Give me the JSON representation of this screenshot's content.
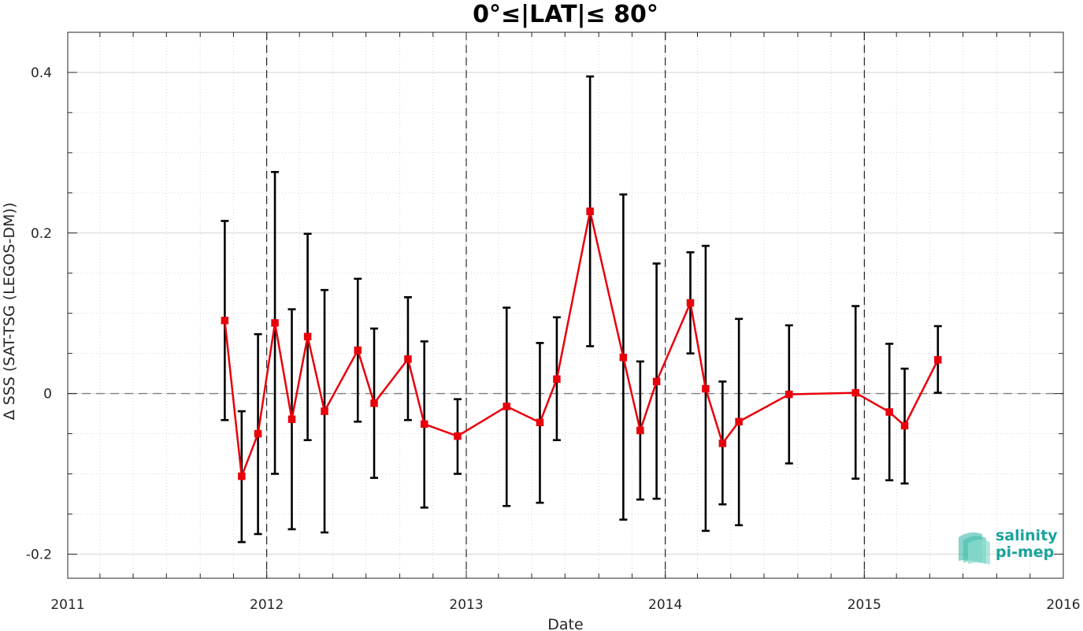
{
  "chart_data": {
    "type": "line",
    "title": "0°≤|LAT|≤ 80°",
    "xlabel": "Date",
    "ylabel": "Δ SSS (SAT-TSG (LEGOS-DM))",
    "xlim": [
      "2011-01-01",
      "2016-01-01"
    ],
    "ylim": [
      -0.23,
      0.45
    ],
    "x_ticks": [
      "2011",
      "2012",
      "2013",
      "2014",
      "2015",
      "2016"
    ],
    "y_ticks": [
      -0.2,
      0,
      0.2,
      0.4
    ],
    "y_tick_labels": [
      "-0.2",
      "0",
      "0.2",
      "0.4"
    ],
    "grid": true,
    "zero_line": 0,
    "year_boundaries": [
      "2012-01-01",
      "2013-01-01",
      "2014-01-01",
      "2015-01-01"
    ],
    "series": [
      {
        "color": "#e8000b",
        "marker": "square",
        "error_bar_color": "#000000",
        "points": [
          {
            "x": "2011-10-16",
            "y": 0.091,
            "ylow": -0.033,
            "yhigh": 0.215
          },
          {
            "x": "2011-11-16",
            "y": -0.103,
            "ylow": -0.185,
            "yhigh": -0.022
          },
          {
            "x": "2011-12-16",
            "y": -0.05,
            "ylow": -0.175,
            "yhigh": 0.074
          },
          {
            "x": "2012-01-16",
            "y": 0.088,
            "ylow": -0.1,
            "yhigh": 0.276
          },
          {
            "x": "2012-02-16",
            "y": -0.032,
            "ylow": -0.169,
            "yhigh": 0.105
          },
          {
            "x": "2012-03-16",
            "y": 0.071,
            "ylow": -0.058,
            "yhigh": 0.199
          },
          {
            "x": "2012-04-16",
            "y": -0.022,
            "ylow": -0.173,
            "yhigh": 0.129
          },
          {
            "x": "2012-06-16",
            "y": 0.054,
            "ylow": -0.035,
            "yhigh": 0.143
          },
          {
            "x": "2012-07-16",
            "y": -0.012,
            "ylow": -0.105,
            "yhigh": 0.081
          },
          {
            "x": "2012-09-16",
            "y": 0.043,
            "ylow": -0.033,
            "yhigh": 0.12
          },
          {
            "x": "2012-10-16",
            "y": -0.038,
            "ylow": -0.142,
            "yhigh": 0.065
          },
          {
            "x": "2012-12-16",
            "y": -0.053,
            "ylow": -0.1,
            "yhigh": -0.007
          },
          {
            "x": "2013-03-16",
            "y": -0.016,
            "ylow": -0.14,
            "yhigh": 0.107
          },
          {
            "x": "2013-05-16",
            "y": -0.036,
            "ylow": -0.136,
            "yhigh": 0.063
          },
          {
            "x": "2013-06-16",
            "y": 0.018,
            "ylow": -0.058,
            "yhigh": 0.095
          },
          {
            "x": "2013-08-16",
            "y": 0.227,
            "ylow": 0.059,
            "yhigh": 0.395
          },
          {
            "x": "2013-10-16",
            "y": 0.045,
            "ylow": -0.157,
            "yhigh": 0.248
          },
          {
            "x": "2013-11-16",
            "y": -0.046,
            "ylow": -0.132,
            "yhigh": 0.04
          },
          {
            "x": "2013-12-16",
            "y": 0.015,
            "ylow": -0.131,
            "yhigh": 0.162
          },
          {
            "x": "2014-02-16",
            "y": 0.113,
            "ylow": 0.05,
            "yhigh": 0.176
          },
          {
            "x": "2014-03-16",
            "y": 0.006,
            "ylow": -0.171,
            "yhigh": 0.184
          },
          {
            "x": "2014-04-16",
            "y": -0.062,
            "ylow": -0.138,
            "yhigh": 0.015
          },
          {
            "x": "2014-05-16",
            "y": -0.035,
            "ylow": -0.164,
            "yhigh": 0.093
          },
          {
            "x": "2014-08-16",
            "y": -0.001,
            "ylow": -0.087,
            "yhigh": 0.085
          },
          {
            "x": "2014-12-16",
            "y": 0.001,
            "ylow": -0.106,
            "yhigh": 0.109
          },
          {
            "x": "2015-02-16",
            "y": -0.023,
            "ylow": -0.108,
            "yhigh": 0.062
          },
          {
            "x": "2015-03-16",
            "y": -0.04,
            "ylow": -0.112,
            "yhigh": 0.031
          },
          {
            "x": "2015-05-16",
            "y": 0.042,
            "ylow": 0.001,
            "yhigh": 0.084
          }
        ]
      }
    ]
  },
  "logo": {
    "line1": "salinity",
    "line2": "pi-mep",
    "color": "#1ba39c"
  }
}
